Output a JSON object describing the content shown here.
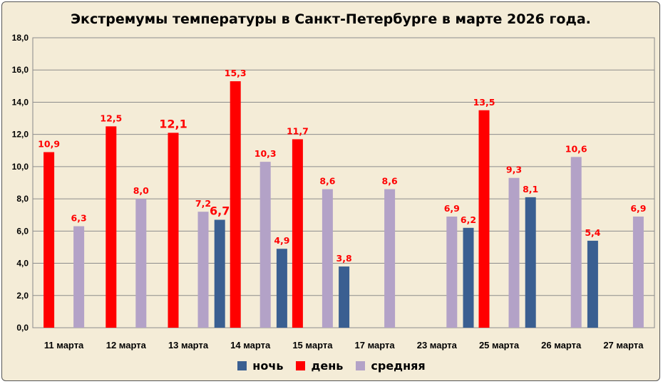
{
  "chart_data": {
    "type": "bar",
    "title": "Экстремумы температуры в Санкт-Петербурге в марте 2026 года.",
    "categories": [
      "11 марта",
      "12 марта",
      "13 марта",
      "14 марта",
      "15 марта",
      "17 марта",
      "23 марта",
      "25 марта",
      "26 марта",
      "27 марта"
    ],
    "series": [
      {
        "name": "ночь",
        "color": "#3a5f91",
        "values": [
          null,
          null,
          null,
          6.7,
          4.9,
          3.8,
          null,
          6.2,
          8.1,
          5.4
        ]
      },
      {
        "name": "день",
        "color": "#ff0000",
        "values": [
          10.9,
          12.5,
          12.1,
          15.3,
          11.7,
          null,
          null,
          13.5,
          null,
          null
        ]
      },
      {
        "name": "средняя",
        "color": "#b3a2c7",
        "values": [
          6.3,
          8.0,
          7.2,
          10.3,
          8.6,
          8.6,
          6.9,
          9.3,
          10.6,
          6.9
        ]
      }
    ],
    "ylim": [
      0,
      18
    ],
    "yticks": [
      "0,0",
      "2,0",
      "4,0",
      "6,0",
      "8,0",
      "10,0",
      "12,0",
      "14,0",
      "16,0",
      "18,0"
    ],
    "grid": true,
    "legend_position": "bottom",
    "data_label_color": "#ff0000"
  }
}
